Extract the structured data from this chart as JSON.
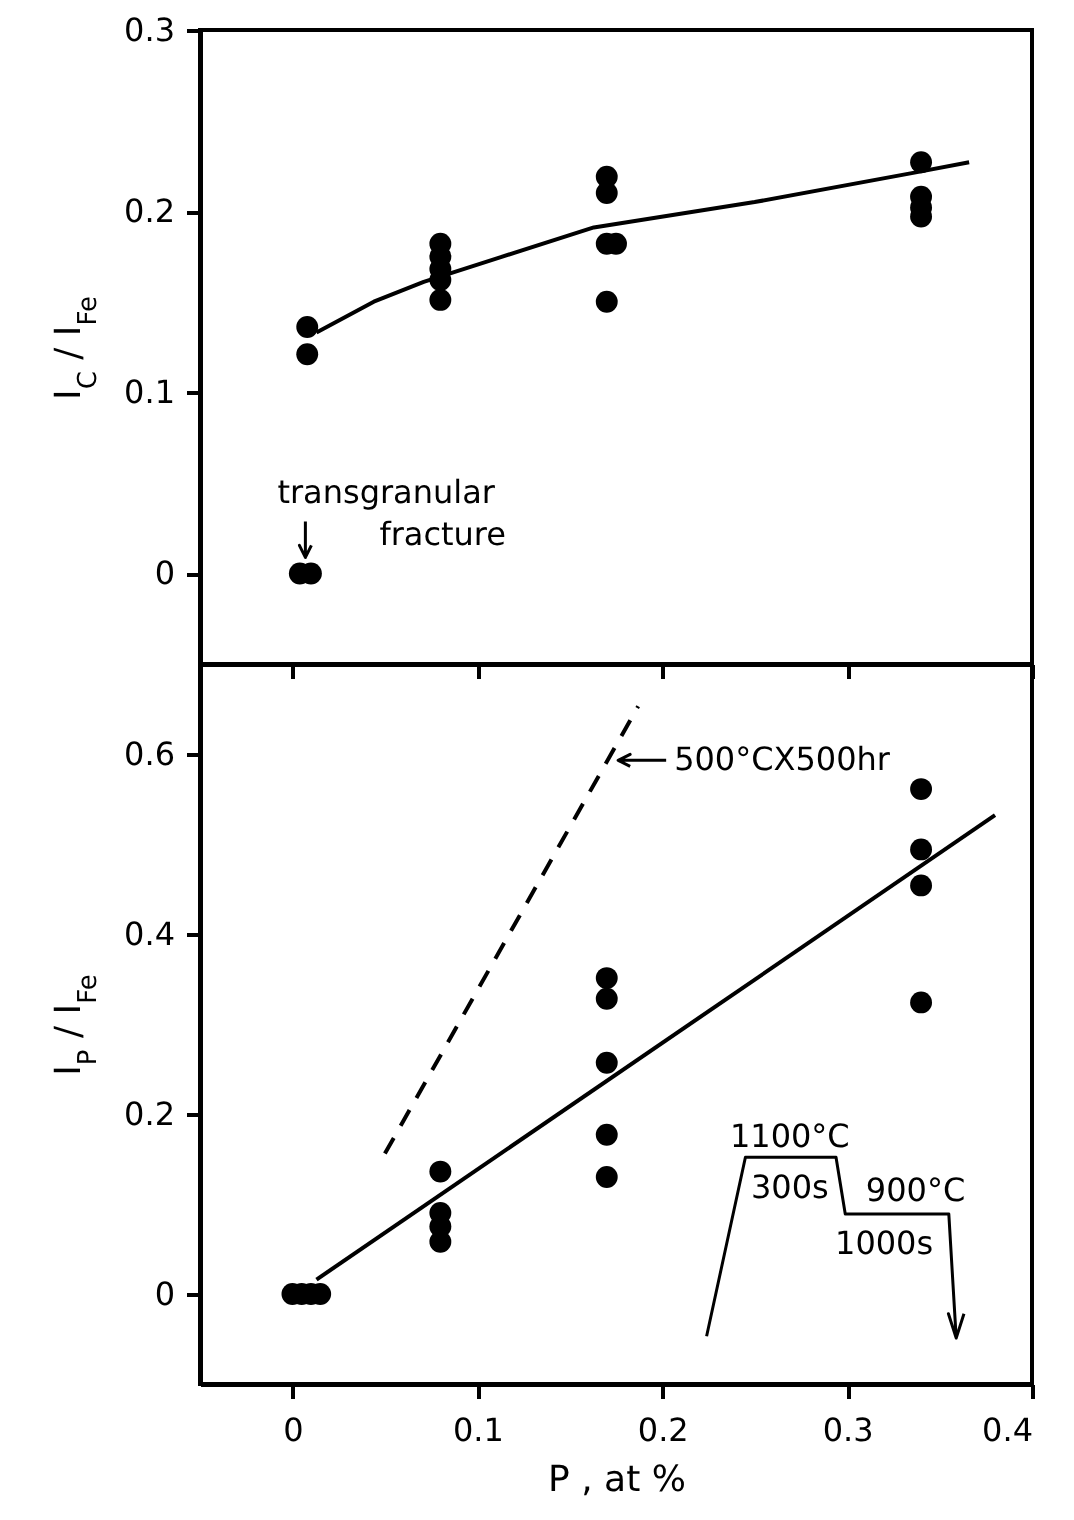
{
  "chart_data": [
    {
      "type": "scatter",
      "ylabel": "I$_{C}$ / I$_{Fe}$",
      "xlim": [
        -0.05,
        0.4
      ],
      "xticks": [
        {
          "value": 0,
          "label": null
        },
        {
          "value": 0.1,
          "label": null
        },
        {
          "value": 0.2,
          "label": null
        },
        {
          "value": 0.3,
          "label": null
        },
        {
          "value": 0.4,
          "label": null
        }
      ],
      "ylim": [
        -0.05,
        0.3
      ],
      "yticks": [
        0,
        0.1,
        0.2,
        0.3
      ],
      "tick_labels": "y",
      "series": [
        {
          "marker": "circle",
          "color": "#000000",
          "x": [
            0.008,
            0.008,
            0.08,
            0.08,
            0.08,
            0.08,
            0.08,
            0.17,
            0.17,
            0.17,
            0.175,
            0.17,
            0.34,
            0.34,
            0.34,
            0.34
          ],
          "values": [
            0.136,
            0.121,
            0.182,
            0.175,
            0.168,
            0.162,
            0.151,
            0.219,
            0.21,
            0.182,
            0.182,
            0.15,
            0.227,
            0.208,
            0.202,
            0.197
          ]
        },
        {
          "marker": "circle",
          "color": "#000000",
          "x": [
            0.004,
            0.01
          ],
          "values": [
            0,
            0
          ]
        },
        {
          "type": "line",
          "marker": "none",
          "color": "#000000",
          "x": [
            0.013,
            0.044,
            0.071,
            0.163,
            0.25,
            0.335,
            0.366
          ],
          "values": [
            0.133,
            0.15,
            0.161,
            0.191,
            0.205,
            0.221,
            0.227
          ]
        }
      ],
      "annotations": [
        {
          "text": "transgranular fracture",
          "x": 0.007,
          "y": 0
        }
      ]
    },
    {
      "type": "scatter",
      "xlabel": "P , at %",
      "ylabel": "I$_{P}$ / I$_{Fe}$",
      "xlim": [
        -0.05,
        0.4
      ],
      "xticks": [
        0,
        0.1,
        0.2,
        0.3,
        0.4
      ],
      "ylim": [
        -0.1,
        0.7
      ],
      "yticks": [
        0,
        0.2,
        0.4,
        0.6
      ],
      "series": [
        {
          "marker": "circle",
          "color": "#000000",
          "x": [
            0,
            0.005,
            0.01,
            0.015,
            0.08,
            0.08,
            0.08,
            0.08,
            0.17,
            0.17,
            0.17,
            0.17,
            0.17,
            0.34,
            0.34,
            0.34,
            0.34
          ],
          "values": [
            0,
            0,
            0,
            0,
            0.136,
            0.09,
            0.075,
            0.058,
            0.351,
            0.328,
            0.257,
            0.177,
            0.13,
            0.561,
            0.494,
            0.454,
            0.324
          ]
        },
        {
          "type": "line",
          "marker": "none",
          "color": "#000000",
          "line_style": "solid",
          "x": [
            0.013,
            0.38
          ],
          "values": [
            0.016,
            0.532
          ]
        },
        {
          "type": "line",
          "marker": "none",
          "color": "#000000",
          "line_style": "dashed",
          "x": [
            0.05,
            0.187
          ],
          "values": [
            0.156,
            0.653
          ]
        }
      ],
      "annotations": [
        {
          "text": "500°CX500hr",
          "x": 0.174,
          "y": 0.593
        },
        "1100°C",
        "300s",
        "900°C",
        "1000s"
      ]
    }
  ]
}
